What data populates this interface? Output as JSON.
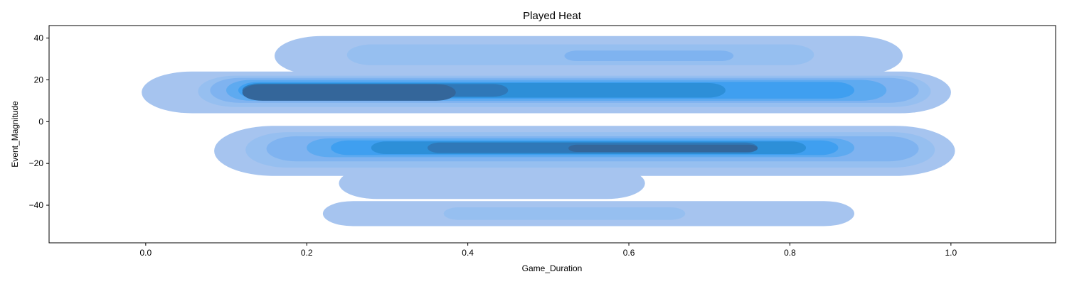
{
  "chart_data": {
    "type": "kde-density",
    "title": "Played Heat",
    "xlabel": "Game_Duration",
    "ylabel": "Event_Magnitude",
    "xlim": [
      -0.12,
      1.13
    ],
    "ylim": [
      -58,
      46
    ],
    "xticks": [
      0.0,
      0.2,
      0.4,
      0.6,
      0.8,
      1.0
    ],
    "xtick_labels": [
      "0.0",
      "0.2",
      "0.4",
      "0.6",
      "0.8",
      "1.0"
    ],
    "yticks": [
      40,
      20,
      0,
      -20,
      -40
    ],
    "ytick_labels": [
      "40",
      "20",
      "0",
      "−20",
      "−40"
    ],
    "grid": false,
    "fill_colors": [
      "#a6c4ef",
      "#96bff0",
      "#7fb3f0",
      "#5eaaf0",
      "#3f9ff0",
      "#2d8fd8",
      "#2f78b8",
      "#34669a",
      "#395b80"
    ],
    "density_levels": [
      {
        "level": 1,
        "bands": [
          {
            "x": [
              0.16,
              0.94
            ],
            "y": [
              22,
              41
            ]
          },
          {
            "x": [
              -0.005,
              1.0
            ],
            "y": [
              4,
              24
            ]
          },
          {
            "x": [
              0.085,
              1.005
            ],
            "y": [
              -26,
              -2
            ]
          },
          {
            "x": [
              0.24,
              0.62
            ],
            "y": [
              -37,
              -22
            ]
          },
          {
            "x": [
              0.22,
              0.88
            ],
            "y": [
              -50,
              -38
            ]
          }
        ]
      },
      {
        "level": 2,
        "bands": [
          {
            "x": [
              0.25,
              0.83
            ],
            "y": [
              27,
              37
            ]
          },
          {
            "x": [
              0.065,
              0.975
            ],
            "y": [
              7,
              22
            ]
          },
          {
            "x": [
              0.124,
              0.98
            ],
            "y": [
              -22,
              -5
            ]
          },
          {
            "x": [
              0.37,
              0.67
            ],
            "y": [
              -47,
              -41
            ]
          }
        ]
      },
      {
        "level": 3,
        "bands": [
          {
            "x": [
              0.52,
              0.73
            ],
            "y": [
              29,
              34
            ]
          },
          {
            "x": [
              0.08,
              0.96
            ],
            "y": [
              9,
              21
            ]
          },
          {
            "x": [
              0.15,
              0.96
            ],
            "y": [
              -19,
              -7
            ]
          }
        ]
      },
      {
        "level": 4,
        "bands": [
          {
            "x": [
              0.1,
              0.92
            ],
            "y": [
              10,
              20
            ]
          },
          {
            "x": [
              0.2,
              0.88
            ],
            "y": [
              -17,
              -8
            ]
          }
        ]
      },
      {
        "level": 5,
        "bands": [
          {
            "x": [
              0.115,
              0.88
            ],
            "y": [
              11,
              19
            ]
          },
          {
            "x": [
              0.23,
              0.86
            ],
            "y": [
              -16,
              -9
            ]
          }
        ]
      },
      {
        "level": 6,
        "bands": [
          {
            "x": [
              0.12,
              0.72
            ],
            "y": [
              11.5,
              18.5
            ]
          },
          {
            "x": [
              0.28,
              0.82
            ],
            "y": [
              -15.5,
              -9.5
            ]
          }
        ]
      },
      {
        "level": 7,
        "bands": [
          {
            "x": [
              0.12,
              0.45
            ],
            "y": [
              12,
              18
            ]
          },
          {
            "x": [
              0.35,
              0.76
            ],
            "y": [
              -15,
              -10
            ]
          }
        ]
      },
      {
        "level": 8,
        "bands": [
          {
            "x": [
              0.12,
              0.385
            ],
            "y": [
              10,
              18
            ]
          },
          {
            "x": [
              0.525,
              0.76
            ],
            "y": [
              -14.5,
              -11
            ]
          }
        ]
      }
    ]
  }
}
